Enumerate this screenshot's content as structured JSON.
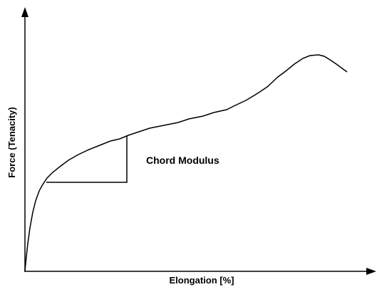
{
  "diagram": {
    "x_axis_label": "Elongation [%]",
    "y_axis_label": "Force (Tenacity)",
    "annotation": "Chord Modulus"
  }
}
